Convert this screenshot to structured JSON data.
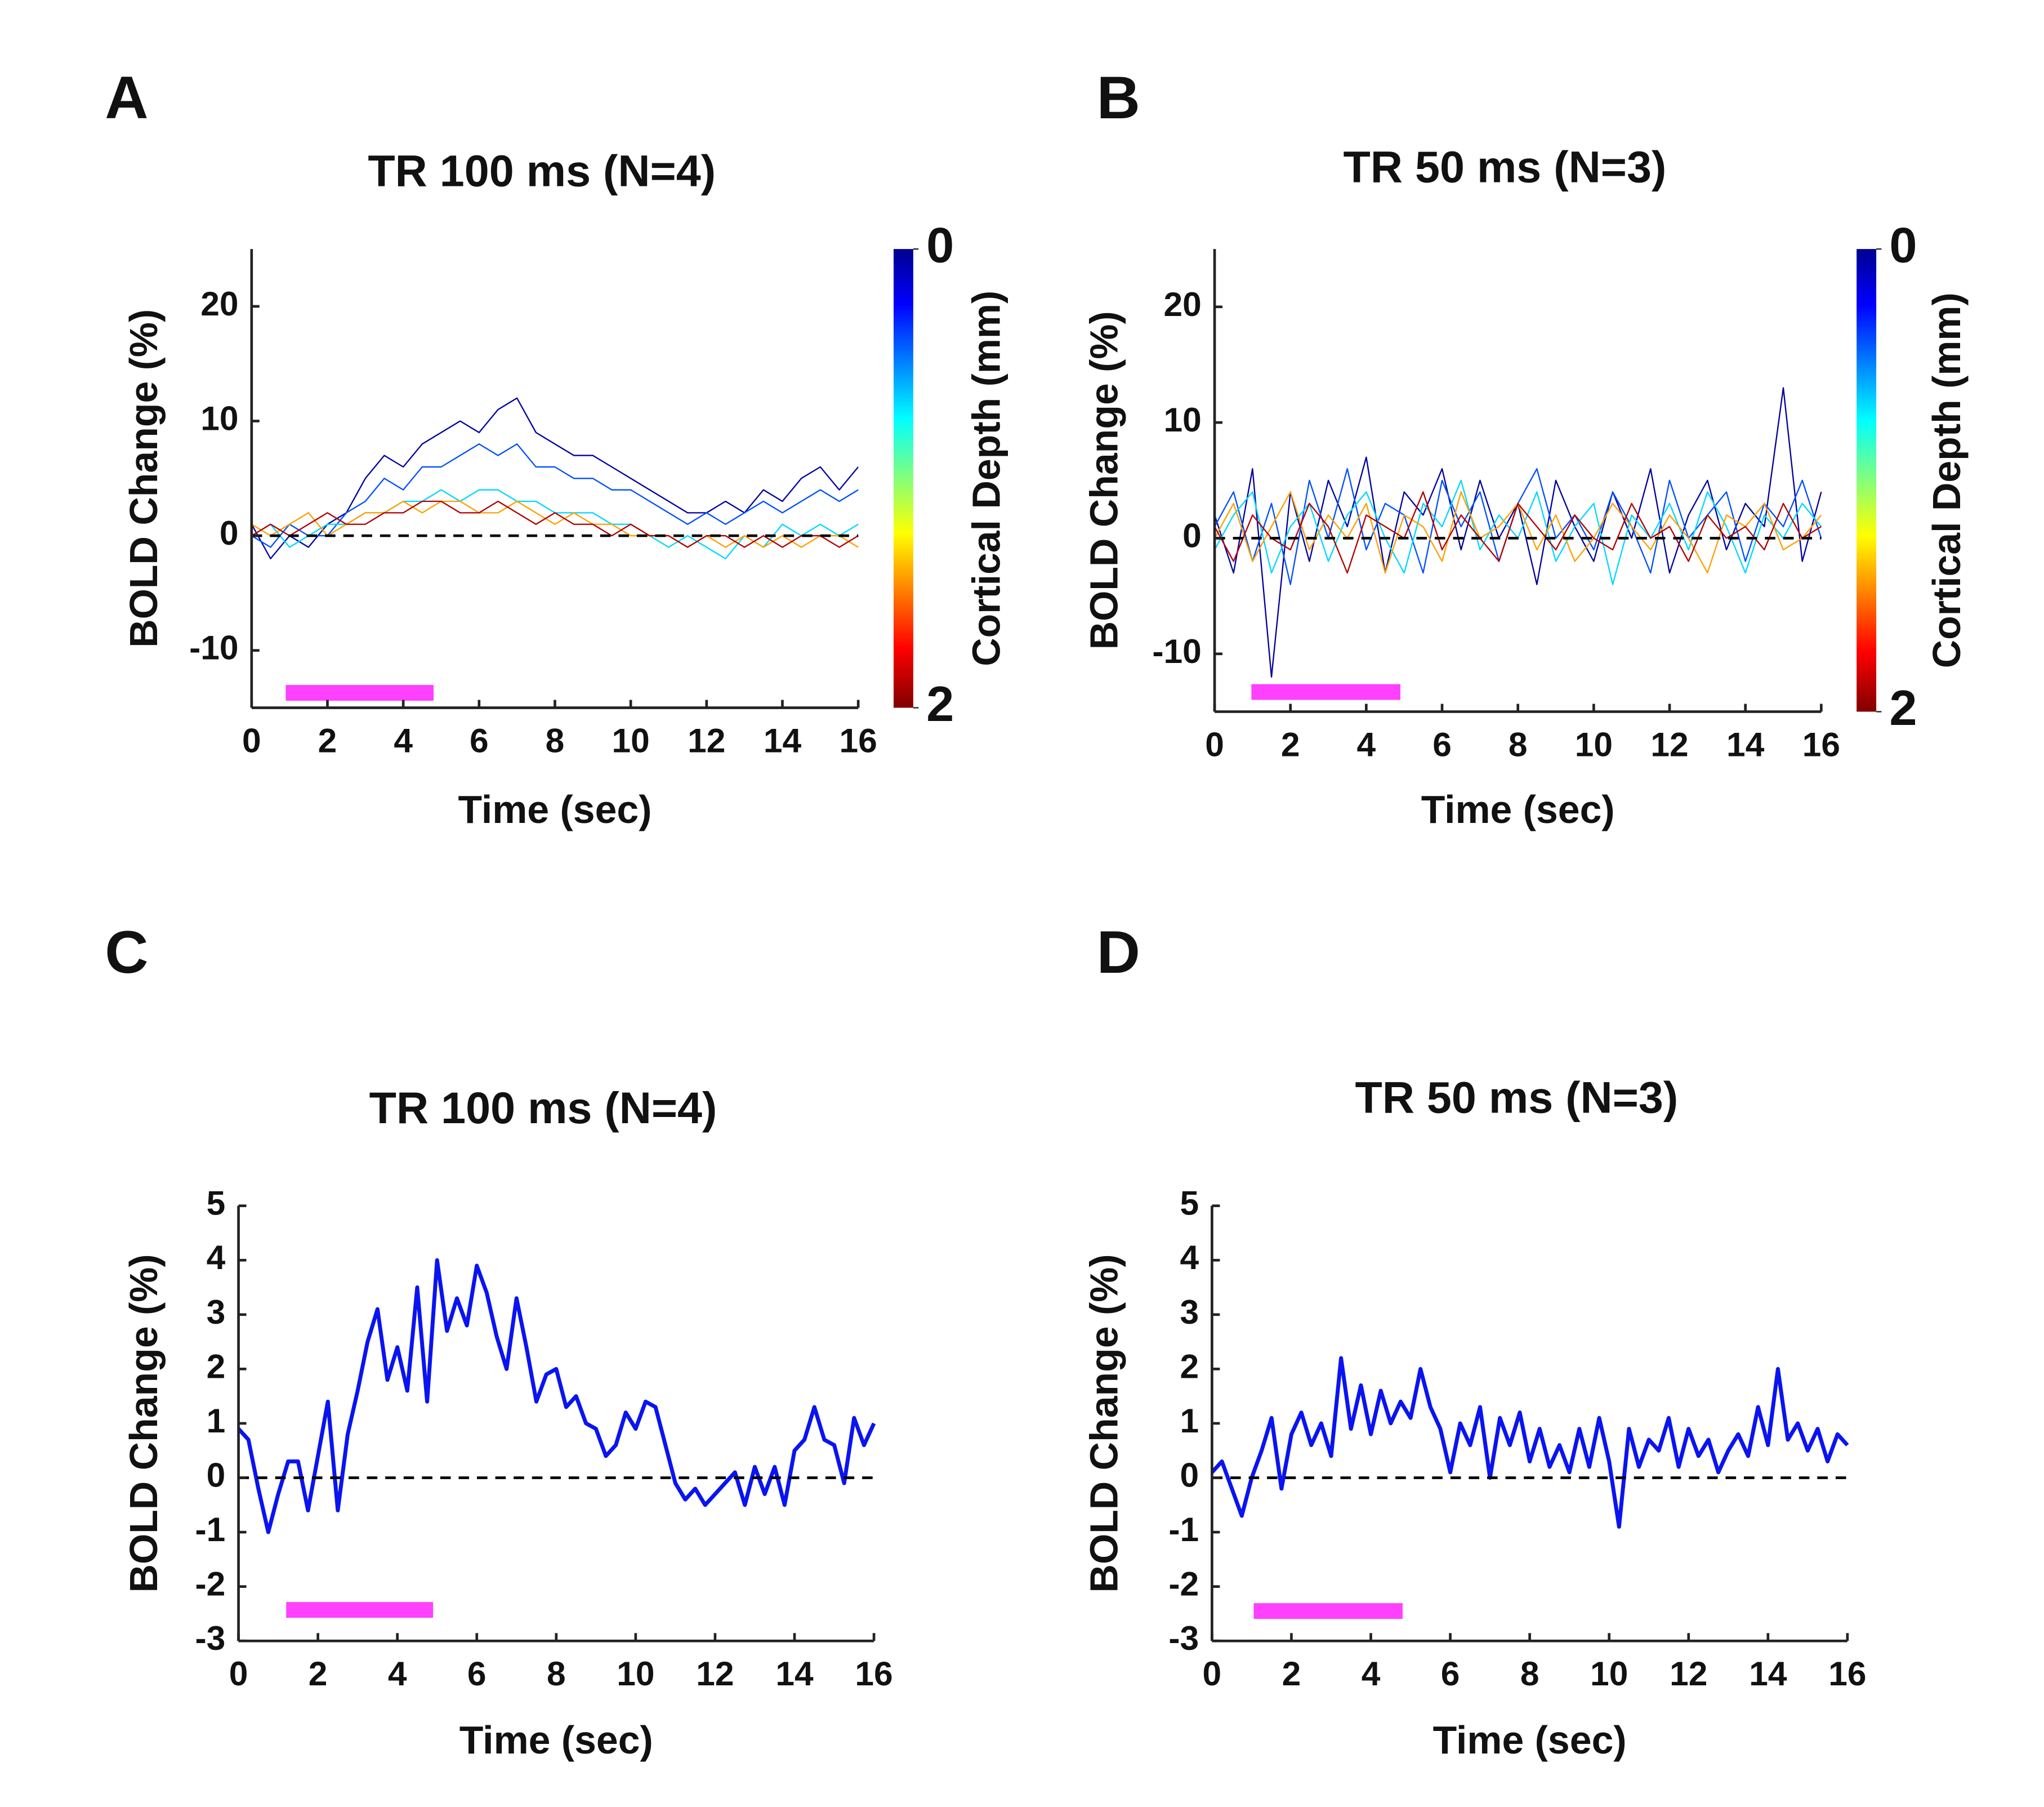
{
  "chart_data": [
    {
      "type": "line",
      "panel": "A",
      "title": "TR 100 ms (N=4)",
      "x_label": "Time (sec)",
      "y_label": "BOLD Change (%)",
      "x": [
        0,
        0.5,
        1,
        1.5,
        2,
        2.5,
        3,
        3.5,
        4,
        4.5,
        5,
        5.5,
        6,
        6.5,
        7,
        7.5,
        8,
        8.5,
        9,
        9.5,
        10,
        10.5,
        11,
        11.5,
        12,
        12.5,
        13,
        13.5,
        14,
        14.5,
        15,
        15.5,
        16
      ],
      "series": [
        {
          "color": "#00009f",
          "values": [
            1,
            -2,
            0,
            -1,
            1,
            2,
            5,
            7,
            6,
            8,
            9,
            10,
            9,
            11,
            12,
            9,
            8,
            7,
            7,
            6,
            5,
            4,
            3,
            2,
            2,
            3,
            2,
            4,
            3,
            5,
            6,
            4,
            6
          ]
        },
        {
          "color": "#0050ff",
          "values": [
            0,
            -1,
            1,
            0,
            0,
            2,
            3,
            5,
            4,
            6,
            6,
            7,
            8,
            7,
            8,
            6,
            6,
            5,
            5,
            4,
            4,
            3,
            2,
            1,
            2,
            1,
            2,
            3,
            2,
            3,
            4,
            3,
            4
          ]
        },
        {
          "color": "#00d8ff",
          "values": [
            0,
            1,
            -1,
            0,
            1,
            1,
            2,
            2,
            3,
            3,
            4,
            3,
            4,
            4,
            3,
            3,
            2,
            2,
            2,
            1,
            1,
            0,
            -1,
            0,
            -1,
            -2,
            0,
            -1,
            1,
            0,
            1,
            0,
            1
          ]
        },
        {
          "color": "#ffa000",
          "values": [
            1,
            0,
            1,
            2,
            0,
            1,
            2,
            2,
            3,
            2,
            3,
            3,
            2,
            2,
            3,
            2,
            1,
            2,
            1,
            1,
            0,
            0,
            0,
            -1,
            0,
            -1,
            0,
            -1,
            0,
            -1,
            0,
            0,
            -1
          ]
        },
        {
          "color": "#b00000",
          "values": [
            0,
            1,
            0,
            1,
            2,
            1,
            1,
            2,
            2,
            3,
            3,
            2,
            2,
            3,
            2,
            1,
            2,
            1,
            1,
            0,
            1,
            0,
            0,
            -1,
            0,
            0,
            -1,
            0,
            -1,
            0,
            0,
            -1,
            0
          ]
        }
      ],
      "xlim": [
        0,
        16
      ],
      "ylim": [
        -15,
        25
      ],
      "xticks": [
        0,
        2,
        4,
        6,
        8,
        10,
        12,
        14,
        16
      ],
      "yticks": [
        -10,
        0,
        10,
        20
      ],
      "reference_line": 0,
      "stimulus": {
        "start": 0.9,
        "end": 4.8,
        "y": -13.7,
        "color": "#ff40ff"
      },
      "colorbar": {
        "label": "Cortical Depth (mm)",
        "lim": [
          0,
          2
        ],
        "ticks": [
          0,
          2
        ]
      }
    },
    {
      "type": "line",
      "panel": "B",
      "title": "TR 50 ms (N=3)",
      "x_label": "Time (sec)",
      "y_label": "BOLD Change (%)",
      "x": [
        0,
        0.5,
        1,
        1.5,
        2,
        2.5,
        3,
        3.5,
        4,
        4.5,
        5,
        5.5,
        6,
        6.5,
        7,
        7.5,
        8,
        8.5,
        9,
        9.5,
        10,
        10.5,
        11,
        11.5,
        12,
        12.5,
        13,
        13.5,
        14,
        14.5,
        15,
        15.5,
        16
      ],
      "series": [
        {
          "color": "#00009f",
          "values": [
            2,
            -3,
            6,
            -12,
            4,
            -2,
            5,
            1,
            7,
            -3,
            4,
            2,
            6,
            -1,
            5,
            0,
            3,
            -4,
            5,
            1,
            -2,
            4,
            0,
            6,
            -3,
            2,
            5,
            -1,
            3,
            1,
            13,
            -2,
            4
          ]
        },
        {
          "color": "#0050ff",
          "values": [
            1,
            4,
            -2,
            3,
            -4,
            5,
            0,
            6,
            -1,
            3,
            2,
            -3,
            5,
            1,
            4,
            -2,
            3,
            6,
            0,
            2,
            -1,
            4,
            1,
            -3,
            5,
            0,
            2,
            4,
            -2,
            3,
            1,
            5,
            0
          ]
        },
        {
          "color": "#00d8ff",
          "values": [
            -1,
            2,
            4,
            -3,
            1,
            3,
            -2,
            2,
            4,
            0,
            -3,
            3,
            1,
            5,
            -1,
            2,
            0,
            4,
            -2,
            1,
            3,
            -4,
            2,
            0,
            3,
            -1,
            4,
            1,
            -3,
            2,
            0,
            3,
            1
          ]
        },
        {
          "color": "#ffa000",
          "values": [
            0,
            3,
            -2,
            1,
            4,
            -1,
            2,
            0,
            3,
            -3,
            2,
            1,
            -2,
            4,
            0,
            1,
            3,
            -1,
            2,
            -2,
            0,
            3,
            1,
            -1,
            2,
            0,
            -3,
            2,
            1,
            3,
            -1,
            0,
            2
          ]
        },
        {
          "color": "#b00000",
          "values": [
            1,
            -2,
            2,
            0,
            -1,
            3,
            1,
            -3,
            2,
            1,
            0,
            4,
            -1,
            2,
            0,
            -2,
            3,
            1,
            -1,
            2,
            0,
            -1,
            3,
            0,
            1,
            -2,
            2,
            0,
            1,
            -1,
            3,
            0,
            1
          ]
        }
      ],
      "xlim": [
        0,
        16
      ],
      "ylim": [
        -15,
        25
      ],
      "xticks": [
        0,
        2,
        4,
        6,
        8,
        10,
        12,
        14,
        16
      ],
      "yticks": [
        -10,
        0,
        10,
        20
      ],
      "reference_line": 0,
      "stimulus": {
        "start": 0.97,
        "end": 4.9,
        "y": -13.3,
        "color": "#ff40ff"
      },
      "colorbar": {
        "label": "Cortical Depth (mm)",
        "lim": [
          0,
          2
        ],
        "ticks": [
          0,
          2
        ]
      }
    },
    {
      "type": "line",
      "panel": "C",
      "title": "TR 100 ms (N=4)",
      "x_label": "Time (sec)",
      "y_label": "BOLD Change (%)",
      "x": [
        0,
        0.25,
        0.5,
        0.75,
        1,
        1.25,
        1.5,
        1.75,
        2,
        2.25,
        2.5,
        2.75,
        3,
        3.25,
        3.5,
        3.75,
        4,
        4.25,
        4.5,
        4.75,
        5,
        5.25,
        5.5,
        5.75,
        6,
        6.25,
        6.5,
        6.75,
        7,
        7.25,
        7.5,
        7.75,
        8,
        8.25,
        8.5,
        8.75,
        9,
        9.25,
        9.5,
        9.75,
        10,
        10.25,
        10.5,
        10.75,
        11,
        11.25,
        11.5,
        11.75,
        12,
        12.25,
        12.5,
        12.75,
        13,
        13.25,
        13.5,
        13.75,
        14,
        14.25,
        14.5,
        14.75,
        15,
        15.25,
        15.5,
        15.75,
        16
      ],
      "series": [
        {
          "color": "#0a14f0",
          "values": [
            0.9,
            0.7,
            -0.2,
            -1.0,
            -0.3,
            0.3,
            0.3,
            -0.6,
            0.4,
            1.4,
            -0.6,
            0.8,
            1.6,
            2.5,
            3.1,
            1.8,
            2.4,
            1.6,
            3.5,
            1.4,
            4.0,
            2.7,
            3.3,
            2.8,
            3.9,
            3.4,
            2.6,
            2.0,
            3.3,
            2.4,
            1.4,
            1.9,
            2.0,
            1.3,
            1.5,
            1.0,
            0.9,
            0.4,
            0.6,
            1.2,
            0.9,
            1.4,
            1.3,
            0.6,
            -0.1,
            -0.4,
            -0.2,
            -0.5,
            -0.3,
            -0.1,
            0.1,
            -0.5,
            0.2,
            -0.3,
            0.2,
            -0.5,
            0.5,
            0.7,
            1.3,
            0.7,
            0.6,
            -0.1,
            1.1,
            0.6,
            1.0
          ]
        }
      ],
      "xlim": [
        0,
        16
      ],
      "ylim": [
        -3,
        5
      ],
      "xticks": [
        0,
        2,
        4,
        6,
        8,
        10,
        12,
        14,
        16
      ],
      "yticks": [
        -3,
        -2,
        -1,
        0,
        1,
        2,
        3,
        4,
        5
      ],
      "reference_line": 0,
      "stimulus": {
        "start": 1.2,
        "end": 4.9,
        "y": -2.43,
        "color": "#ff40ff"
      }
    },
    {
      "type": "line",
      "panel": "D",
      "title": "TR 50 ms (N=3)",
      "x_label": "Time (sec)",
      "y_label": "BOLD Change (%)",
      "x": [
        0,
        0.25,
        0.5,
        0.75,
        1,
        1.25,
        1.5,
        1.75,
        2,
        2.25,
        2.5,
        2.75,
        3,
        3.25,
        3.5,
        3.75,
        4,
        4.25,
        4.5,
        4.75,
        5,
        5.25,
        5.5,
        5.75,
        6,
        6.25,
        6.5,
        6.75,
        7,
        7.25,
        7.5,
        7.75,
        8,
        8.25,
        8.5,
        8.75,
        9,
        9.25,
        9.5,
        9.75,
        10,
        10.25,
        10.5,
        10.75,
        11,
        11.25,
        11.5,
        11.75,
        12,
        12.25,
        12.5,
        12.75,
        13,
        13.25,
        13.5,
        13.75,
        14,
        14.25,
        14.5,
        14.75,
        15,
        15.25,
        15.5,
        15.75,
        16
      ],
      "series": [
        {
          "color": "#0a14f0",
          "values": [
            0.1,
            0.3,
            -0.2,
            -0.7,
            0.0,
            0.5,
            1.1,
            -0.2,
            0.8,
            1.2,
            0.6,
            1.0,
            0.4,
            2.2,
            0.9,
            1.7,
            0.8,
            1.6,
            1.0,
            1.4,
            1.1,
            2.0,
            1.3,
            0.9,
            0.1,
            1.0,
            0.6,
            1.3,
            0.0,
            1.1,
            0.6,
            1.2,
            0.3,
            0.9,
            0.2,
            0.6,
            0.1,
            0.9,
            0.2,
            1.1,
            0.3,
            -0.9,
            0.9,
            0.2,
            0.7,
            0.5,
            1.1,
            0.2,
            0.9,
            0.4,
            0.7,
            0.1,
            0.5,
            0.8,
            0.4,
            1.3,
            0.6,
            2.0,
            0.7,
            1.0,
            0.5,
            0.9,
            0.3,
            0.8,
            0.6
          ]
        }
      ],
      "xlim": [
        0,
        16
      ],
      "ylim": [
        -3,
        5
      ],
      "xticks": [
        0,
        2,
        4,
        6,
        8,
        10,
        12,
        14,
        16
      ],
      "yticks": [
        -3,
        -2,
        -1,
        0,
        1,
        2,
        3,
        4,
        5
      ],
      "reference_line": 0,
      "stimulus": {
        "start": 1.05,
        "end": 4.8,
        "y": -2.45,
        "color": "#ff40ff"
      }
    }
  ]
}
